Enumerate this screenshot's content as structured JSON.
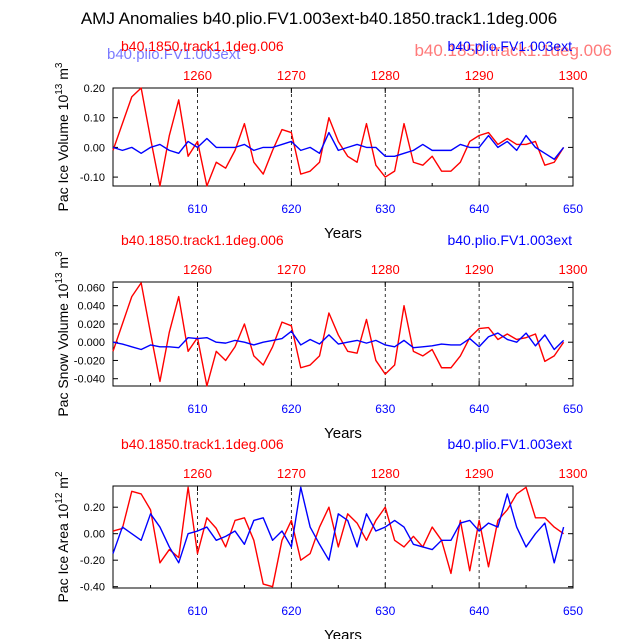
{
  "figure_title": "AMJ Anomalies b40.plio.FV1.003ext-b40.1850.track1.1deg.006",
  "overlay": {
    "ghost_left": "b40.plio.FV1.003ext",
    "ghost_right": "b40.1850.track1.1deg.006"
  },
  "colors": {
    "red": "#ff0000",
    "blue": "#0000ff",
    "ghost_blue": "#7a7aff",
    "ghost_red": "#ff7a7a"
  },
  "chart_data": [
    {
      "type": "line",
      "name": "ice-volume",
      "ylabel": "Pac Ice Volume 10",
      "ylabel_exp": "13",
      "ylabel_unit": " m",
      "ylabel_unit_exp": "3",
      "xlabel": "Years",
      "legend_left": "b40.1850.track1.1deg.006",
      "legend_right": "b40.plio.FV1.003ext",
      "xlim": [
        601,
        650
      ],
      "ylim": [
        -0.13,
        0.2
      ],
      "bottom_ticks": [
        "610",
        "620",
        "630",
        "640",
        "650"
      ],
      "top_ticks": [
        "1260",
        "1270",
        "1280",
        "1290",
        "1300"
      ],
      "yticks": [
        0.2,
        0.1,
        0.0,
        -0.1
      ],
      "ytick_labels": [
        "0.20",
        "0.10",
        "0.00",
        "-0.10"
      ],
      "series": [
        {
          "color": "#ff0000",
          "values": [
            -0.01,
            0.08,
            0.17,
            0.2,
            0.03,
            -0.13,
            0.04,
            0.16,
            -0.03,
            0.02,
            -0.13,
            -0.05,
            -0.07,
            -0.01,
            0.08,
            -0.05,
            -0.09,
            -0.01,
            0.06,
            0.05,
            -0.09,
            -0.08,
            -0.05,
            0.1,
            0.02,
            -0.03,
            -0.05,
            0.08,
            -0.06,
            -0.1,
            -0.08,
            0.08,
            -0.05,
            -0.06,
            -0.03,
            -0.08,
            -0.08,
            -0.05,
            0.02,
            0.04,
            0.05,
            0.01,
            0.03,
            0.01,
            0.01,
            0.02,
            -0.06,
            -0.05,
            0.0
          ]
        },
        {
          "color": "#0000ff",
          "values": [
            0.0,
            -0.01,
            0.0,
            -0.02,
            0.0,
            0.01,
            -0.01,
            -0.02,
            0.02,
            0.0,
            0.03,
            0.0,
            0.0,
            0.0,
            0.01,
            -0.01,
            0.0,
            0.0,
            0.01,
            0.02,
            -0.01,
            0.0,
            -0.02,
            0.05,
            -0.01,
            0.0,
            0.01,
            0.0,
            0.0,
            -0.03,
            -0.03,
            -0.02,
            -0.01,
            0.01,
            -0.01,
            -0.01,
            -0.01,
            0.01,
            0.0,
            0.0,
            0.04,
            0.0,
            0.02,
            -0.01,
            0.04,
            0.0,
            -0.02,
            -0.04,
            0.0
          ]
        }
      ]
    },
    {
      "type": "line",
      "name": "snow-volume",
      "ylabel": "Pac Snow Volume 10",
      "ylabel_exp": "13",
      "ylabel_unit": " m",
      "ylabel_unit_exp": "3",
      "xlabel": "Years",
      "legend_left": "b40.1850.track1.1deg.006",
      "legend_right": "b40.plio.FV1.003ext",
      "xlim": [
        601,
        650
      ],
      "ylim": [
        -0.048,
        0.066
      ],
      "bottom_ticks": [
        "610",
        "620",
        "630",
        "640",
        "650"
      ],
      "top_ticks": [
        "1260",
        "1270",
        "1280",
        "1290",
        "1300"
      ],
      "yticks": [
        0.06,
        0.04,
        0.02,
        0.0,
        -0.02,
        -0.04
      ],
      "ytick_labels": [
        "0.060",
        "0.040",
        "0.020",
        "0.000",
        "-0.020",
        "-0.040"
      ],
      "series": [
        {
          "color": "#ff0000",
          "values": [
            -0.01,
            0.02,
            0.05,
            0.065,
            0.01,
            -0.043,
            0.011,
            0.05,
            -0.01,
            0.005,
            -0.048,
            -0.01,
            -0.02,
            -0.005,
            0.02,
            -0.015,
            -0.025,
            -0.005,
            0.022,
            0.018,
            -0.028,
            -0.025,
            -0.015,
            0.032,
            0.008,
            -0.01,
            -0.012,
            0.025,
            -0.02,
            -0.035,
            -0.025,
            0.04,
            -0.01,
            -0.015,
            -0.008,
            -0.028,
            -0.028,
            -0.015,
            0.005,
            0.015,
            0.016,
            0.003,
            0.009,
            0.003,
            0.005,
            0.009,
            -0.021,
            -0.015,
            0.0
          ]
        },
        {
          "color": "#0000ff",
          "values": [
            0.0,
            -0.002,
            -0.005,
            -0.008,
            -0.003,
            -0.005,
            -0.005,
            -0.006,
            0.005,
            0.004,
            0.005,
            0.0,
            -0.001,
            0.002,
            0.0,
            -0.003,
            0.0,
            0.002,
            0.004,
            0.012,
            -0.003,
            0.003,
            -0.002,
            0.008,
            -0.002,
            0.0,
            0.002,
            -0.001,
            0.002,
            -0.003,
            -0.005,
            0.002,
            -0.006,
            -0.005,
            -0.004,
            -0.002,
            -0.003,
            -0.003,
            0.004,
            -0.005,
            0.006,
            0.01,
            0.003,
            0.0,
            0.01,
            -0.004,
            0.008,
            -0.008,
            0.002
          ]
        }
      ]
    },
    {
      "type": "line",
      "name": "ice-area",
      "ylabel": "Pac Ice Area 10",
      "ylabel_exp": "12",
      "ylabel_unit": " m",
      "ylabel_unit_exp": "2",
      "xlabel": "Years",
      "legend_left": "b40.1850.track1.1deg.006",
      "legend_right": "b40.plio.FV1.003ext",
      "xlim": [
        601,
        650
      ],
      "ylim": [
        -0.41,
        0.36
      ],
      "bottom_ticks": [
        "610",
        "620",
        "630",
        "640",
        "650"
      ],
      "top_ticks": [
        "1260",
        "1270",
        "1280",
        "1290",
        "1300"
      ],
      "yticks": [
        0.2,
        0.0,
        -0.2,
        -0.4
      ],
      "ytick_labels": [
        "0.20",
        "0.00",
        "-0.20",
        "-0.40"
      ],
      "series": [
        {
          "color": "#ff0000",
          "values": [
            0.02,
            0.04,
            0.32,
            0.3,
            0.18,
            -0.22,
            -0.12,
            -0.18,
            0.35,
            -0.15,
            0.12,
            0.04,
            -0.1,
            0.1,
            0.12,
            -0.05,
            -0.38,
            -0.4,
            -0.05,
            0.1,
            -0.2,
            -0.15,
            0.05,
            0.2,
            -0.1,
            0.15,
            0.08,
            -0.05,
            0.1,
            0.2,
            -0.05,
            -0.1,
            -0.02,
            -0.1,
            0.05,
            -0.05,
            -0.3,
            0.1,
            -0.28,
            0.1,
            -0.25,
            0.1,
            0.18,
            0.3,
            0.35,
            0.12,
            0.12,
            0.05,
            0.0
          ]
        },
        {
          "color": "#0000ff",
          "values": [
            -0.15,
            0.05,
            0.0,
            -0.05,
            0.15,
            0.05,
            -0.1,
            -0.22,
            0.0,
            0.02,
            0.05,
            -0.05,
            -0.02,
            0.02,
            -0.08,
            0.1,
            0.12,
            -0.05,
            0.02,
            -0.1,
            0.35,
            0.05,
            -0.08,
            -0.2,
            0.15,
            0.1,
            -0.1,
            0.15,
            0.02,
            0.05,
            0.1,
            0.05,
            -0.08,
            -0.1,
            -0.12,
            -0.05,
            -0.05,
            0.08,
            0.1,
            0.02,
            0.08,
            0.05,
            0.3,
            0.05,
            -0.1,
            0.0,
            0.08,
            -0.22,
            0.05
          ]
        }
      ]
    }
  ]
}
